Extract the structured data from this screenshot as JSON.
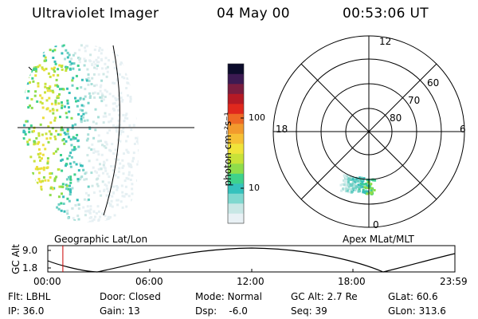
{
  "header": {
    "title": "Ultraviolet Imager",
    "date": "04 May 00",
    "time": "00:53:06 UT"
  },
  "colorbar": {
    "unit_label": "photon cm⁻²s⁻¹",
    "ticks": [
      "100",
      "10"
    ],
    "scale": "log",
    "colors": [
      "#e9f1f5",
      "#c8e7e5",
      "#7fd8cf",
      "#35c2bd",
      "#3fd28c",
      "#8fdd4b",
      "#c8e238",
      "#f0e43a",
      "#f6c035",
      "#f29a2d",
      "#ee6a25",
      "#e0281d",
      "#b51a25",
      "#7a1d3f",
      "#3c1a52",
      "#0c0c2b"
    ]
  },
  "polar": {
    "mlt_labels": [
      "12",
      "18",
      "6",
      "0"
    ],
    "lat_labels": [
      "60",
      "70",
      "80"
    ]
  },
  "captions": {
    "left": "Geographic Lat/Lon",
    "right": "Apex MLat/MLT"
  },
  "altitude_plot": {
    "y_title": "GC Alt",
    "y_ticks": [
      "9.0",
      "1.8"
    ],
    "x_ticks": [
      "00:00",
      "06:00",
      "12:00",
      "18:00",
      "23:59"
    ],
    "marker_time_fraction": 0.037
  },
  "status": {
    "flt": "Flt: LBHL",
    "ip": "IP: 36.0",
    "door": "Door: Closed",
    "gain": "Gain: 13",
    "mode": "Mode: Normal",
    "dsp": "Dsp:    -6.0",
    "gcalt": "GC Alt: 2.7 Re",
    "seq": "Seq: 39",
    "glat": "GLat:  60.6",
    "glon": "GLon: 313.6"
  }
}
